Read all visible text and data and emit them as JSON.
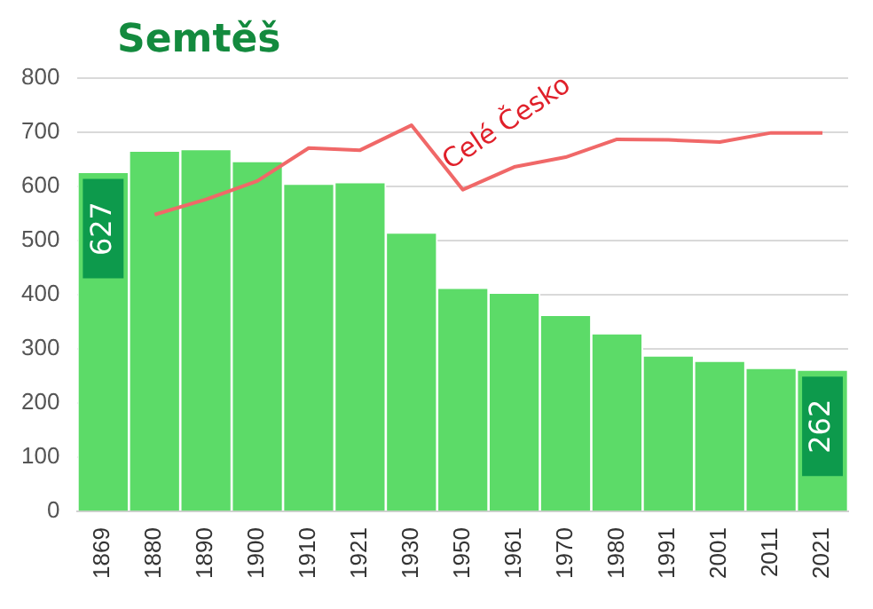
{
  "chart_data": {
    "type": "bar",
    "title": "Semtěš",
    "categories": [
      "1869",
      "1880",
      "1890",
      "1900",
      "1910",
      "1921",
      "1930",
      "1950",
      "1961",
      "1970",
      "1980",
      "1991",
      "2001",
      "2011",
      "2021"
    ],
    "series": [
      {
        "color": "#5cdb68",
        "values": [
          627,
          666,
          669,
          647,
          605,
          608,
          515,
          413,
          404,
          363,
          329,
          288,
          278,
          265,
          262
        ],
        "value_labels": [
          "627",
          null,
          null,
          null,
          null,
          null,
          null,
          null,
          null,
          null,
          null,
          null,
          null,
          null,
          "262"
        ]
      },
      {
        "type": "line",
        "name": "Celé Česko",
        "color": "#f06868",
        "values": [
          null,
          548,
          576,
          610,
          671,
          667,
          713,
          594,
          636,
          654,
          687,
          686,
          682,
          699,
          699
        ]
      }
    ],
    "ylim": [
      0,
      800
    ],
    "yticks": [
      0,
      100,
      200,
      300,
      400,
      500,
      600,
      700,
      800
    ],
    "grid": "y",
    "legend": false,
    "marker": "none"
  }
}
